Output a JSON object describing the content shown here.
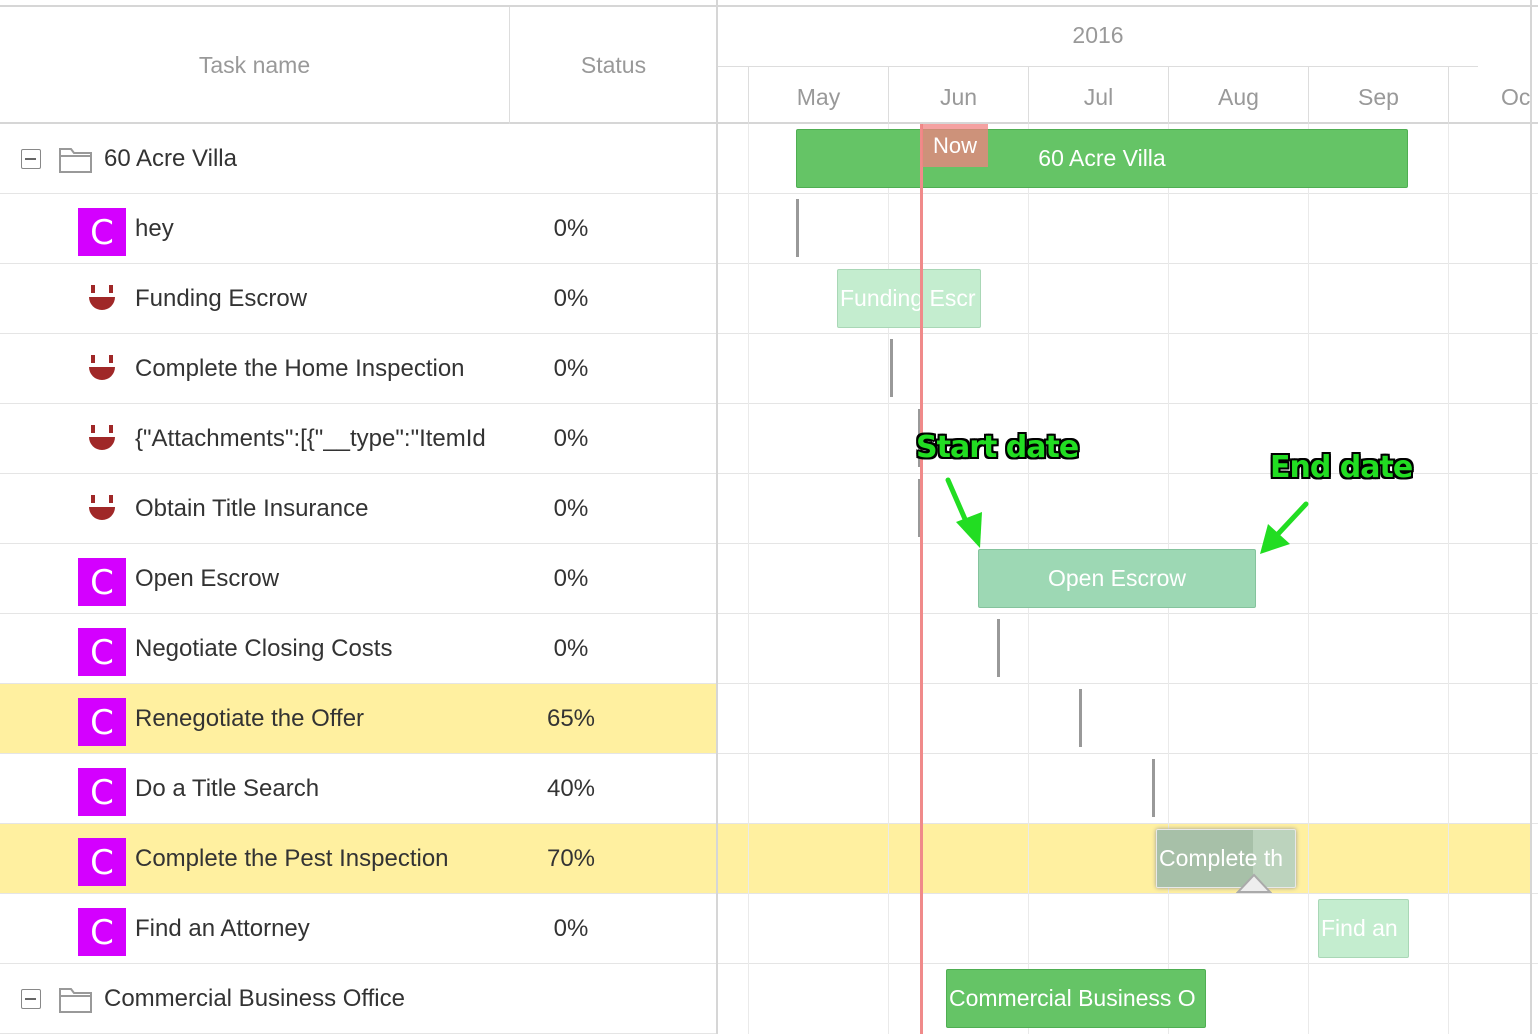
{
  "grid": {
    "columns": {
      "task_name": "Task name",
      "status": "Status"
    },
    "rows": [
      {
        "kind": "group",
        "label": "60 Acre Villa"
      },
      {
        "kind": "task",
        "icon": "C",
        "label": "hey",
        "status": "0%"
      },
      {
        "kind": "task",
        "icon": "smile-icon",
        "label": "Funding Escrow",
        "status": "0%"
      },
      {
        "kind": "task",
        "icon": "smile-icon",
        "label": "Complete the Home Inspection",
        "status": "0%"
      },
      {
        "kind": "task",
        "icon": "smile-icon",
        "label": "{\"Attachments\":[{\"__type\":\"ItemId",
        "status": "0%"
      },
      {
        "kind": "task",
        "icon": "smile-icon",
        "label": "Obtain Title Insurance",
        "status": "0%"
      },
      {
        "kind": "task",
        "icon": "C",
        "label": "Open Escrow",
        "status": "0%"
      },
      {
        "kind": "task",
        "icon": "C",
        "label": "Negotiate Closing Costs",
        "status": "0%"
      },
      {
        "kind": "task",
        "icon": "C",
        "label": "Renegotiate the Offer",
        "status": "65%",
        "selected": true
      },
      {
        "kind": "task",
        "icon": "C",
        "label": "Do a Title Search",
        "status": "40%"
      },
      {
        "kind": "task",
        "icon": "C",
        "label": "Complete the Pest Inspection",
        "status": "70%",
        "selected": true
      },
      {
        "kind": "task",
        "icon": "C",
        "label": "Find an Attorney",
        "status": "0%"
      },
      {
        "kind": "group",
        "label": "Commercial Business Office"
      }
    ]
  },
  "timeline": {
    "year": "2016",
    "months": [
      "May",
      "Jun",
      "Jul",
      "Aug",
      "Sep",
      "Oc"
    ],
    "now_label": "Now",
    "bars": {
      "villa": "60 Acre Villa",
      "funding": "Funding Escr",
      "open_escrow": "Open Escrow",
      "pest": "Complete th",
      "attorney": "Find an",
      "commercial": "Commercial Business O"
    },
    "annotations": {
      "start": "Start date",
      "end": "End date"
    }
  },
  "colors": {
    "badge": "#d400ff",
    "group_bar": "#65c466",
    "task_bar": "#9dd8b4",
    "now_line": "#f08a8a",
    "selected_row": "#fff0a0",
    "annotation": "#22dd22"
  }
}
